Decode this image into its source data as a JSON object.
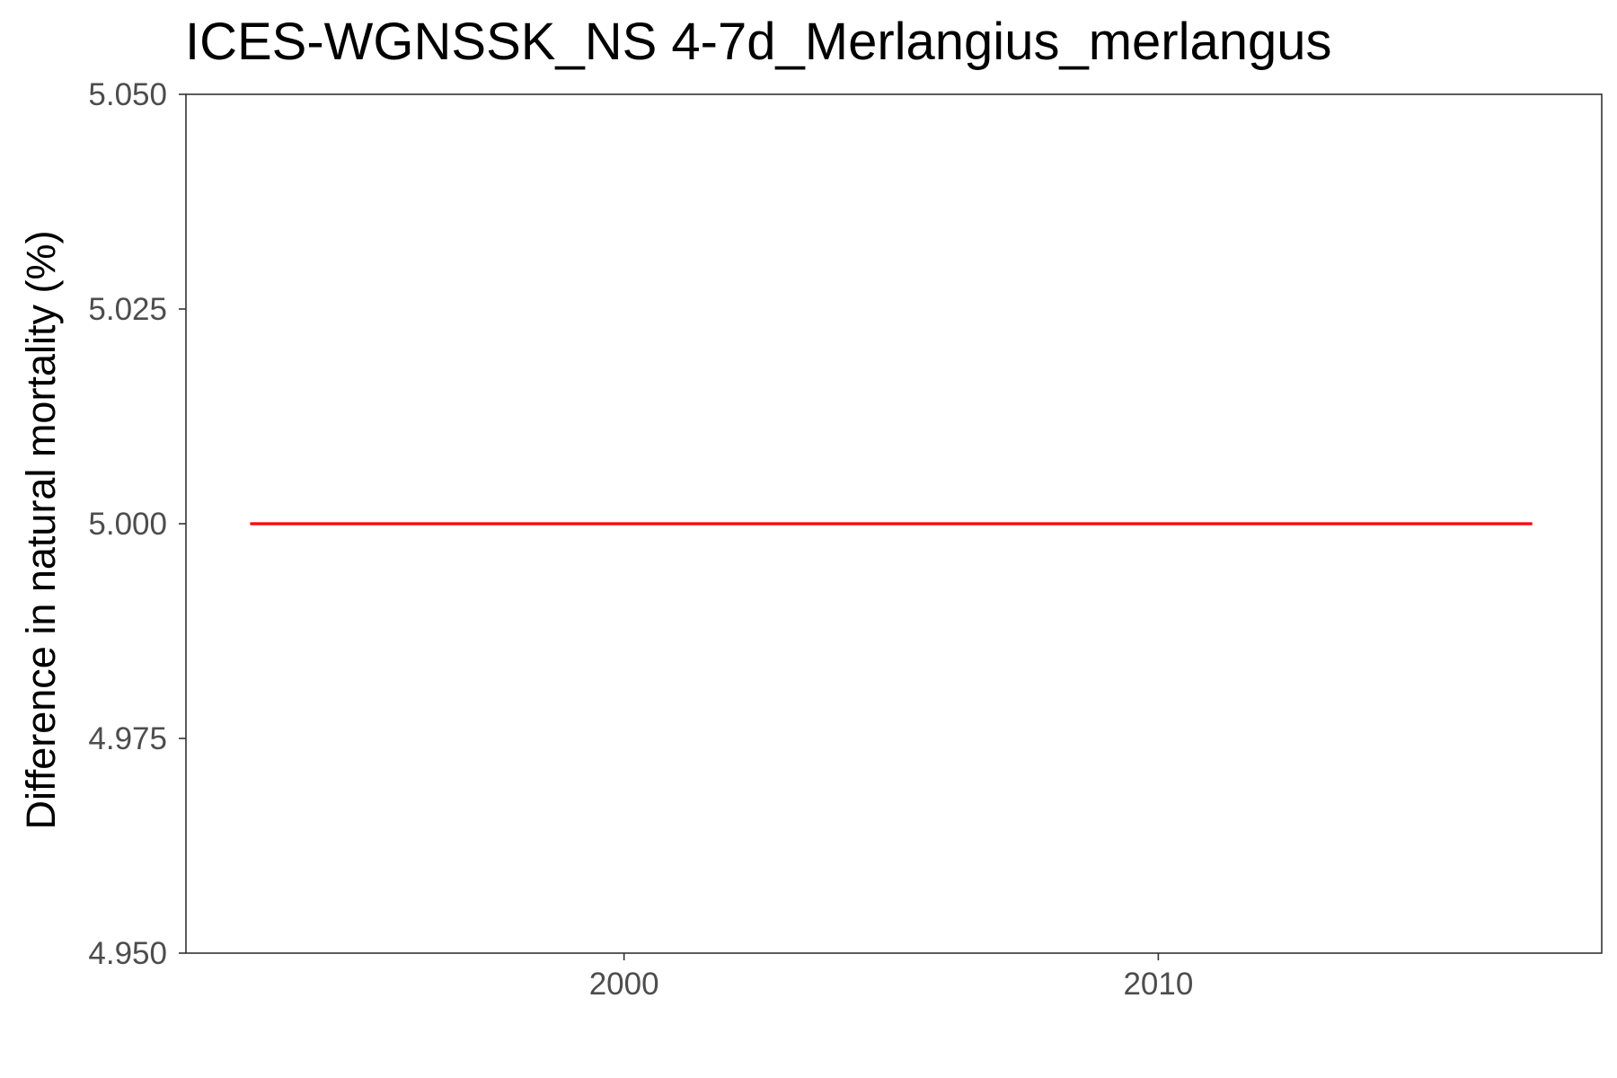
{
  "chart_data": {
    "type": "line",
    "title": "ICES-WGNSSK_NS 4-7d_Merlangius_merlangus",
    "xlabel": "",
    "ylabel": "Difference in natural mortality (%)",
    "xlim": [
      1991.8,
      2018.3
    ],
    "ylim": [
      4.95,
      5.05
    ],
    "x_ticks": [
      2000,
      2010
    ],
    "x_tick_labels": [
      "2000",
      "2010"
    ],
    "y_ticks": [
      4.95,
      4.975,
      5.0,
      5.025,
      5.05
    ],
    "y_tick_labels": [
      "4.950",
      "4.975",
      "5.000",
      "5.025",
      "5.050"
    ],
    "grid": false,
    "series": [
      {
        "color": "#ff0000",
        "x": [
          1993,
          1994,
          1995,
          1996,
          1997,
          1998,
          1999,
          2000,
          2001,
          2002,
          2003,
          2004,
          2005,
          2006,
          2007,
          2008,
          2009,
          2010,
          2011,
          2012,
          2013,
          2014,
          2015,
          2016,
          2017
        ],
        "y": [
          5.0,
          5.0,
          5.0,
          5.0,
          5.0,
          5.0,
          5.0,
          5.0,
          5.0,
          5.0,
          5.0,
          5.0,
          5.0,
          5.0,
          5.0,
          5.0,
          5.0,
          5.0,
          5.0,
          5.0,
          5.0,
          5.0,
          5.0,
          5.0,
          5.0
        ]
      }
    ]
  }
}
